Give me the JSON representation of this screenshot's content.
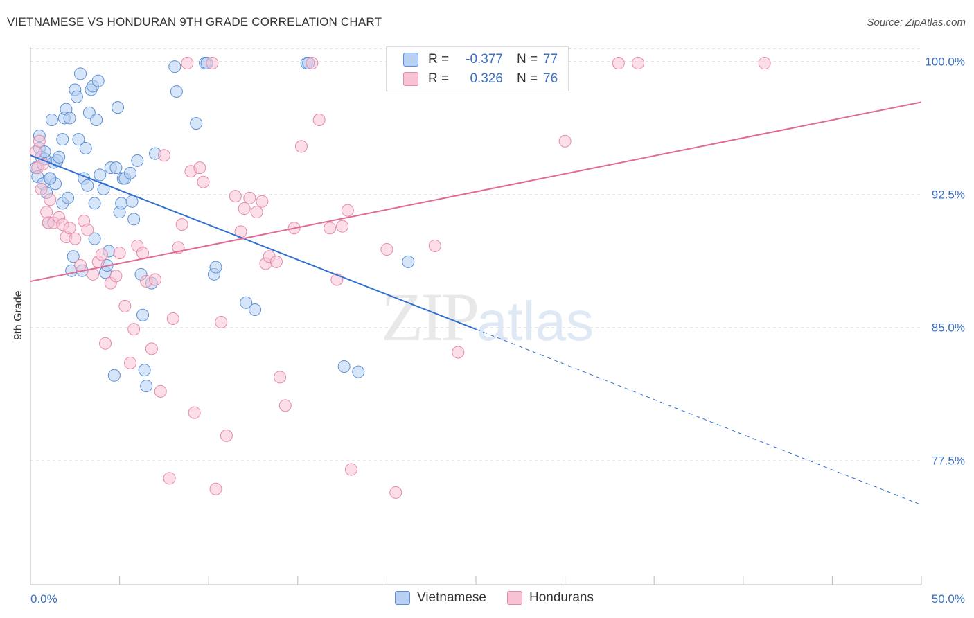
{
  "title": "VIETNAMESE VS HONDURAN 9TH GRADE CORRELATION CHART",
  "source": "Source: ZipAtlas.com",
  "watermark": {
    "zip": "ZIP",
    "atlas": "atlas"
  },
  "colors": {
    "blue_fill": "#b7d0f3",
    "blue_stroke": "#5b8fd6",
    "blue_line": "#2f6fd0",
    "pink_fill": "#f7c3d4",
    "pink_stroke": "#e58aa8",
    "pink_line": "#e06a93",
    "tick_label": "#3a6fc2",
    "grid": "#e3e3e3"
  },
  "legend": {
    "rows": [
      {
        "r_label": "R =",
        "r_value": "-0.377",
        "n_label": "N =",
        "n_value": "77"
      },
      {
        "r_label": "R =",
        "r_value": "0.326",
        "n_label": "N =",
        "n_value": "76"
      }
    ]
  },
  "chart_data": {
    "type": "scatter",
    "title": "VIETNAMESE VS HONDURAN 9TH GRADE CORRELATION CHART",
    "xlabel": "",
    "ylabel": "9th Grade",
    "xlim": [
      0,
      50
    ],
    "ylim": [
      70.5,
      100.8
    ],
    "x_tick_labels": [
      "0.0%",
      "50.0%"
    ],
    "y_ticks": [
      77.5,
      85.0,
      92.5,
      100.0
    ],
    "y_tick_labels": [
      "77.5%",
      "85.0%",
      "92.5%",
      "100.0%"
    ],
    "grid": true,
    "legend_position": "top-center",
    "series": [
      {
        "name": "Vietnamese",
        "trend": {
          "x0": 0,
          "y0": 94.7,
          "x1": 25,
          "y1": 84.9,
          "dash_to_x": 50,
          "dash_to_y": 75.0
        },
        "points": [
          [
            0.3,
            94.0
          ],
          [
            0.4,
            93.5
          ],
          [
            0.5,
            95.8
          ],
          [
            0.5,
            95.1
          ],
          [
            0.6,
            94.6
          ],
          [
            0.7,
            93.1
          ],
          [
            0.8,
            94.5
          ],
          [
            0.8,
            94.9
          ],
          [
            0.9,
            92.6
          ],
          [
            1.0,
            90.9
          ],
          [
            1.1,
            93.4
          ],
          [
            1.2,
            96.7
          ],
          [
            1.3,
            94.3
          ],
          [
            1.4,
            93.1
          ],
          [
            1.5,
            94.4
          ],
          [
            1.6,
            94.6
          ],
          [
            1.8,
            95.6
          ],
          [
            1.8,
            92.0
          ],
          [
            1.9,
            96.8
          ],
          [
            2.0,
            97.3
          ],
          [
            2.1,
            92.3
          ],
          [
            2.2,
            96.8
          ],
          [
            2.3,
            88.2
          ],
          [
            2.5,
            98.4
          ],
          [
            2.6,
            98.0
          ],
          [
            2.7,
            95.6
          ],
          [
            2.8,
            99.3
          ],
          [
            2.9,
            88.2
          ],
          [
            3.0,
            93.4
          ],
          [
            3.1,
            95.1
          ],
          [
            3.2,
            93.0
          ],
          [
            3.3,
            97.1
          ],
          [
            3.4,
            98.4
          ],
          [
            3.5,
            98.6
          ],
          [
            3.6,
            92.0
          ],
          [
            3.7,
            96.7
          ],
          [
            3.8,
            98.9
          ],
          [
            3.9,
            93.6
          ],
          [
            4.1,
            92.8
          ],
          [
            4.2,
            88.1
          ],
          [
            4.3,
            88.5
          ],
          [
            4.4,
            89.3
          ],
          [
            4.5,
            94.0
          ],
          [
            4.7,
            82.3
          ],
          [
            4.8,
            94.0
          ],
          [
            4.9,
            97.4
          ],
          [
            5.0,
            91.5
          ],
          [
            5.1,
            92.0
          ],
          [
            5.2,
            93.4
          ],
          [
            5.3,
            93.4
          ],
          [
            5.6,
            93.7
          ],
          [
            5.7,
            92.1
          ],
          [
            5.8,
            91.1
          ],
          [
            6.0,
            94.4
          ],
          [
            6.2,
            88.0
          ],
          [
            6.3,
            85.7
          ],
          [
            6.4,
            82.6
          ],
          [
            6.5,
            81.7
          ],
          [
            6.8,
            87.5
          ],
          [
            7.0,
            94.8
          ],
          [
            8.1,
            99.7
          ],
          [
            8.2,
            98.3
          ],
          [
            9.3,
            96.5
          ],
          [
            9.8,
            99.9
          ],
          [
            9.9,
            99.9
          ],
          [
            10.3,
            88.0
          ],
          [
            10.4,
            88.4
          ],
          [
            12.1,
            86.4
          ],
          [
            12.6,
            86.0
          ],
          [
            15.5,
            99.9
          ],
          [
            15.6,
            99.9
          ],
          [
            17.6,
            82.8
          ],
          [
            18.4,
            82.5
          ],
          [
            21.2,
            88.7
          ],
          [
            1.1,
            93.4
          ],
          [
            2.4,
            89.0
          ],
          [
            3.6,
            90.0
          ]
        ]
      },
      {
        "name": "Hondurans",
        "trend": {
          "x0": 0,
          "y0": 87.6,
          "x1": 50,
          "y1": 97.7
        },
        "points": [
          [
            0.3,
            94.9
          ],
          [
            0.4,
            94.0
          ],
          [
            0.5,
            95.5
          ],
          [
            0.6,
            92.8
          ],
          [
            0.7,
            94.2
          ],
          [
            0.9,
            91.5
          ],
          [
            1.0,
            90.9
          ],
          [
            1.1,
            92.2
          ],
          [
            1.3,
            90.9
          ],
          [
            1.6,
            91.2
          ],
          [
            1.8,
            90.8
          ],
          [
            2.0,
            90.1
          ],
          [
            2.2,
            90.6
          ],
          [
            2.5,
            90.0
          ],
          [
            2.8,
            88.5
          ],
          [
            3.0,
            91.0
          ],
          [
            3.2,
            90.5
          ],
          [
            3.5,
            88.0
          ],
          [
            3.8,
            88.7
          ],
          [
            4.0,
            89.1
          ],
          [
            4.2,
            84.1
          ],
          [
            4.5,
            87.5
          ],
          [
            4.8,
            87.9
          ],
          [
            5.0,
            89.2
          ],
          [
            5.3,
            86.2
          ],
          [
            5.6,
            83.0
          ],
          [
            5.8,
            84.9
          ],
          [
            6.0,
            89.6
          ],
          [
            6.3,
            89.2
          ],
          [
            6.5,
            87.6
          ],
          [
            6.8,
            83.8
          ],
          [
            7.0,
            87.7
          ],
          [
            7.3,
            81.4
          ],
          [
            7.5,
            94.7
          ],
          [
            7.8,
            76.5
          ],
          [
            8.0,
            85.5
          ],
          [
            8.3,
            89.5
          ],
          [
            8.5,
            90.8
          ],
          [
            8.8,
            99.9
          ],
          [
            9.0,
            93.8
          ],
          [
            9.2,
            80.2
          ],
          [
            9.5,
            94.0
          ],
          [
            9.7,
            93.2
          ],
          [
            10.2,
            99.9
          ],
          [
            10.4,
            75.9
          ],
          [
            10.7,
            85.3
          ],
          [
            11.0,
            78.9
          ],
          [
            11.5,
            92.4
          ],
          [
            11.8,
            90.4
          ],
          [
            12.0,
            91.7
          ],
          [
            12.3,
            92.3
          ],
          [
            12.7,
            91.5
          ],
          [
            13.0,
            92.1
          ],
          [
            13.2,
            88.6
          ],
          [
            13.4,
            89.0
          ],
          [
            13.8,
            88.7
          ],
          [
            14.0,
            82.2
          ],
          [
            14.3,
            80.6
          ],
          [
            14.8,
            90.6
          ],
          [
            15.2,
            95.2
          ],
          [
            15.8,
            99.9
          ],
          [
            16.2,
            96.7
          ],
          [
            16.8,
            90.6
          ],
          [
            17.2,
            87.7
          ],
          [
            17.5,
            90.7
          ],
          [
            17.8,
            91.6
          ],
          [
            18.0,
            77.0
          ],
          [
            20.0,
            89.4
          ],
          [
            20.5,
            75.7
          ],
          [
            22.7,
            89.6
          ],
          [
            24.0,
            83.6
          ],
          [
            28.6,
            99.9
          ],
          [
            30.0,
            95.5
          ],
          [
            33.0,
            99.9
          ],
          [
            34.1,
            99.9
          ],
          [
            41.2,
            99.9
          ]
        ]
      }
    ]
  },
  "bottom_legend": [
    {
      "name": "Vietnamese"
    },
    {
      "name": "Hondurans"
    }
  ]
}
